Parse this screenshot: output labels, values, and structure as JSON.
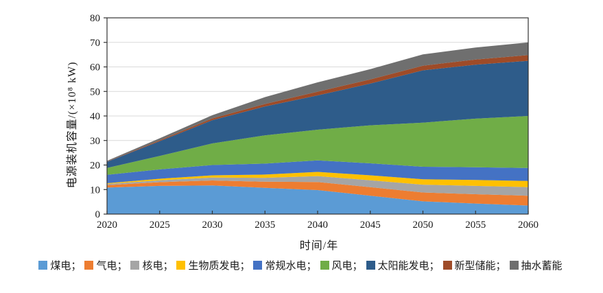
{
  "figure": {
    "background": "#ffffff",
    "xlabel": "时间/年",
    "ylabel": "电源装机容量/(×10⁸ kW)",
    "axis_color": "#333333",
    "grid_color": "#d9d9d9",
    "tick_font_px": 15
  },
  "chart_data": {
    "type": "area",
    "stacked": true,
    "title": "",
    "xlabel": "时间/年",
    "ylabel": "电源装机容量/(×10⁸ kW)",
    "x": [
      2020,
      2025,
      2030,
      2035,
      2040,
      2045,
      2050,
      2055,
      2060
    ],
    "xlim": [
      2020,
      2060
    ],
    "ylim": [
      0,
      80
    ],
    "ytick_step": 10,
    "grid": true,
    "legend_position": "bottom",
    "series": [
      {
        "name": "煤电",
        "suffix": "；",
        "color": "#5B9BD5",
        "values": [
          10.8,
          11.5,
          11.7,
          10.7,
          9.8,
          7.5,
          5.2,
          4.3,
          3.5
        ]
      },
      {
        "name": "气电",
        "suffix": "；",
        "color": "#ED7D31",
        "values": [
          1.0,
          1.5,
          2.0,
          2.5,
          3.3,
          3.5,
          3.6,
          3.8,
          4.0
        ]
      },
      {
        "name": "核电",
        "suffix": "；",
        "color": "#A5A5A5",
        "values": [
          0.5,
          0.8,
          1.2,
          1.6,
          2.4,
          2.8,
          3.2,
          3.4,
          3.5
        ]
      },
      {
        "name": "生物质发电",
        "suffix": "；",
        "color": "#FFC000",
        "values": [
          0.3,
          0.6,
          0.9,
          1.3,
          1.7,
          2.0,
          2.2,
          2.4,
          2.5
        ]
      },
      {
        "name": "常规水电",
        "suffix": "；",
        "color": "#4472C4",
        "values": [
          3.4,
          3.8,
          4.2,
          4.5,
          4.7,
          4.9,
          5.1,
          5.2,
          5.3
        ]
      },
      {
        "name": "风电",
        "suffix": "；",
        "color": "#70AD47",
        "values": [
          2.8,
          5.5,
          8.8,
          11.5,
          12.5,
          15.5,
          18.0,
          19.8,
          21.2
        ]
      },
      {
        "name": "太阳能发电",
        "suffix": "；",
        "color": "#2E5C8A",
        "values": [
          2.5,
          6.0,
          9.5,
          11.8,
          14.0,
          17.0,
          21.3,
          22.0,
          22.5
        ]
      },
      {
        "name": "新型储能",
        "suffix": "；",
        "color": "#9E4B28",
        "values": [
          0.1,
          0.4,
          0.7,
          1.0,
          1.5,
          1.7,
          1.9,
          2.1,
          2.3
        ]
      },
      {
        "name": "抽水蓄能",
        "suffix": "",
        "color": "#6F6F6F",
        "values": [
          0.3,
          0.8,
          1.3,
          2.8,
          3.8,
          4.2,
          4.6,
          4.9,
          5.2
        ]
      }
    ]
  }
}
